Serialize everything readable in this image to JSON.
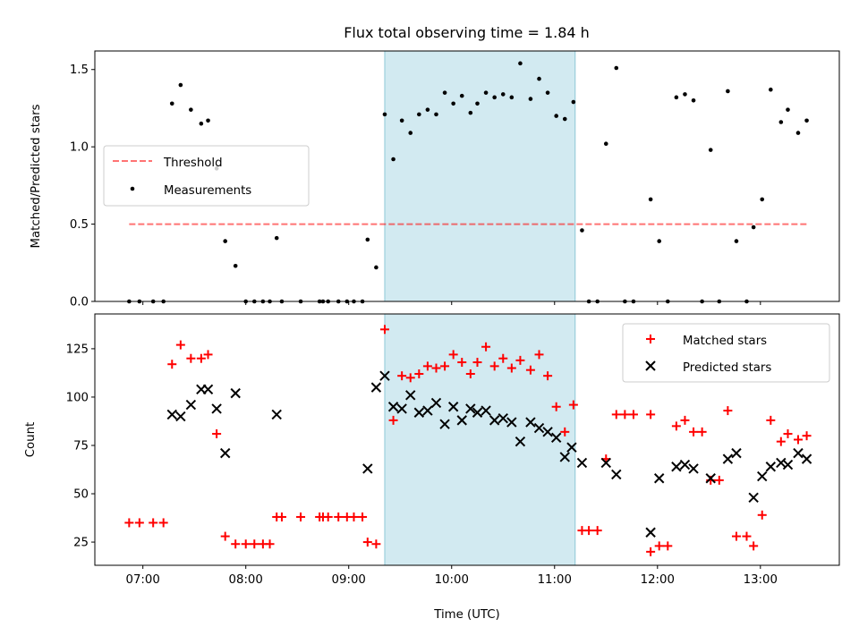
{
  "chart_data": [
    {
      "type": "scatter",
      "title": "Flux total observing time = 1.84 h",
      "xlabel": "",
      "ylabel": "Matched/Predicted stars",
      "xlim": [
        "06:32",
        "13:46"
      ],
      "ylim": [
        0,
        1.62
      ],
      "yticks": [
        "0.0",
        "0.5",
        "1.0",
        "1.5"
      ],
      "highlight_span": {
        "start": "09:21",
        "end": "11:12",
        "color": "#add8e6"
      },
      "threshold": {
        "name": "Threshold",
        "value": 0.5,
        "x": [
          "06:52",
          "13:28"
        ],
        "color": "#ff0000",
        "opacity": 0.55
      },
      "legend": {
        "placement": "center-left",
        "entries": [
          "Threshold",
          "Measurements"
        ]
      },
      "series": [
        {
          "name": "Measurements",
          "color": "#000000",
          "points": [
            [
              "06:52",
              0
            ],
            [
              "06:58",
              0
            ],
            [
              "07:06",
              0
            ],
            [
              "07:12",
              0
            ],
            [
              "07:17",
              1.28
            ],
            [
              "07:22",
              1.4
            ],
            [
              "07:28",
              1.24
            ],
            [
              "07:34",
              1.15
            ],
            [
              "07:38",
              1.17
            ],
            [
              "07:43",
              0.86
            ],
            [
              "07:48",
              0.39
            ],
            [
              "07:54",
              0.23
            ],
            [
              "08:00",
              0
            ],
            [
              "08:05",
              0
            ],
            [
              "08:10",
              0
            ],
            [
              "08:14",
              0
            ],
            [
              "08:18",
              0.41
            ],
            [
              "08:21",
              0
            ],
            [
              "08:32",
              0
            ],
            [
              "08:43",
              0
            ],
            [
              "08:45",
              0
            ],
            [
              "08:48",
              0
            ],
            [
              "08:54",
              0
            ],
            [
              "08:59",
              0
            ],
            [
              "09:03",
              0
            ],
            [
              "09:08",
              0
            ],
            [
              "09:11",
              0.4
            ],
            [
              "09:16",
              0.22
            ],
            [
              "09:21",
              1.21
            ],
            [
              "09:26",
              0.92
            ],
            [
              "09:31",
              1.17
            ],
            [
              "09:36",
              1.09
            ],
            [
              "09:41",
              1.21
            ],
            [
              "09:46",
              1.24
            ],
            [
              "09:51",
              1.21
            ],
            [
              "09:56",
              1.35
            ],
            [
              "10:01",
              1.28
            ],
            [
              "10:06",
              1.33
            ],
            [
              "10:11",
              1.22
            ],
            [
              "10:15",
              1.28
            ],
            [
              "10:20",
              1.35
            ],
            [
              "10:25",
              1.32
            ],
            [
              "10:30",
              1.34
            ],
            [
              "10:35",
              1.32
            ],
            [
              "10:40",
              1.54
            ],
            [
              "10:46",
              1.31
            ],
            [
              "10:51",
              1.44
            ],
            [
              "10:56",
              1.35
            ],
            [
              "11:01",
              1.2
            ],
            [
              "11:06",
              1.18
            ],
            [
              "11:11",
              1.29
            ],
            [
              "11:16",
              0.46
            ],
            [
              "11:20",
              0
            ],
            [
              "11:25",
              0
            ],
            [
              "11:30",
              1.02
            ],
            [
              "11:36",
              1.51
            ],
            [
              "11:41",
              0
            ],
            [
              "11:46",
              0
            ],
            [
              "11:56",
              0.66
            ],
            [
              "12:01",
              0.39
            ],
            [
              "12:06",
              0
            ],
            [
              "12:11",
              1.32
            ],
            [
              "12:16",
              1.34
            ],
            [
              "12:21",
              1.3
            ],
            [
              "12:26",
              0
            ],
            [
              "12:31",
              0.98
            ],
            [
              "12:36",
              0
            ],
            [
              "12:41",
              1.36
            ],
            [
              "12:46",
              0.39
            ],
            [
              "12:52",
              0
            ],
            [
              "12:56",
              0.48
            ],
            [
              "13:01",
              0.66
            ],
            [
              "13:06",
              1.37
            ],
            [
              "13:12",
              1.16
            ],
            [
              "13:16",
              1.24
            ],
            [
              "13:22",
              1.09
            ],
            [
              "13:27",
              1.17
            ]
          ]
        }
      ]
    },
    {
      "type": "scatter",
      "title": "",
      "xlabel": "Time (UTC)",
      "ylabel": "Count",
      "xlim": [
        "06:32",
        "13:46"
      ],
      "ylim": [
        13,
        143
      ],
      "yticks": [
        "25",
        "50",
        "75",
        "100",
        "125"
      ],
      "xticks": [
        "07:00",
        "08:00",
        "09:00",
        "10:00",
        "11:00",
        "12:00",
        "13:00"
      ],
      "highlight_span": {
        "start": "09:21",
        "end": "11:12",
        "color": "#add8e6"
      },
      "legend": {
        "placement": "top-right",
        "entries": [
          "Matched stars",
          "Predicted stars"
        ]
      },
      "series": [
        {
          "name": "Matched stars",
          "marker": "plus",
          "color": "#ff0000",
          "points": [
            [
              "06:52",
              35
            ],
            [
              "06:58",
              35
            ],
            [
              "07:06",
              35
            ],
            [
              "07:12",
              35
            ],
            [
              "07:17",
              117
            ],
            [
              "07:22",
              127
            ],
            [
              "07:28",
              120
            ],
            [
              "07:34",
              120
            ],
            [
              "07:38",
              122
            ],
            [
              "07:43",
              81
            ],
            [
              "07:48",
              28
            ],
            [
              "07:54",
              24
            ],
            [
              "08:00",
              24
            ],
            [
              "08:05",
              24
            ],
            [
              "08:10",
              24
            ],
            [
              "08:14",
              24
            ],
            [
              "08:18",
              38
            ],
            [
              "08:21",
              38
            ],
            [
              "08:32",
              38
            ],
            [
              "08:43",
              38
            ],
            [
              "08:45",
              38
            ],
            [
              "08:48",
              38
            ],
            [
              "08:54",
              38
            ],
            [
              "08:59",
              38
            ],
            [
              "09:03",
              38
            ],
            [
              "09:08",
              38
            ],
            [
              "09:11",
              25
            ],
            [
              "09:16",
              24
            ],
            [
              "09:21",
              135
            ],
            [
              "09:26",
              88
            ],
            [
              "09:31",
              111
            ],
            [
              "09:36",
              110
            ],
            [
              "09:41",
              112
            ],
            [
              "09:46",
              116
            ],
            [
              "09:51",
              115
            ],
            [
              "09:56",
              116
            ],
            [
              "10:01",
              122
            ],
            [
              "10:06",
              118
            ],
            [
              "10:11",
              112
            ],
            [
              "10:15",
              118
            ],
            [
              "10:20",
              126
            ],
            [
              "10:25",
              116
            ],
            [
              "10:30",
              120
            ],
            [
              "10:35",
              115
            ],
            [
              "10:40",
              119
            ],
            [
              "10:46",
              114
            ],
            [
              "10:51",
              122
            ],
            [
              "10:56",
              111
            ],
            [
              "11:01",
              95
            ],
            [
              "11:06",
              82
            ],
            [
              "11:11",
              96
            ],
            [
              "11:16",
              31
            ],
            [
              "11:20",
              31
            ],
            [
              "11:25",
              31
            ],
            [
              "11:30",
              68
            ],
            [
              "11:36",
              91
            ],
            [
              "11:41",
              91
            ],
            [
              "11:46",
              91
            ],
            [
              "11:56",
              91
            ],
            [
              "11:56",
              20
            ],
            [
              "12:01",
              23
            ],
            [
              "12:06",
              23
            ],
            [
              "12:11",
              85
            ],
            [
              "12:16",
              88
            ],
            [
              "12:21",
              82
            ],
            [
              "12:26",
              82
            ],
            [
              "12:31",
              57
            ],
            [
              "12:36",
              57
            ],
            [
              "12:41",
              93
            ],
            [
              "12:46",
              28
            ],
            [
              "12:52",
              28
            ],
            [
              "12:56",
              23
            ],
            [
              "13:01",
              39
            ],
            [
              "13:06",
              88
            ],
            [
              "13:12",
              77
            ],
            [
              "13:16",
              81
            ],
            [
              "13:22",
              78
            ],
            [
              "13:27",
              80
            ]
          ]
        },
        {
          "name": "Predicted stars",
          "marker": "x",
          "color": "#000000",
          "points": [
            [
              "07:17",
              91
            ],
            [
              "07:22",
              90
            ],
            [
              "07:28",
              96
            ],
            [
              "07:34",
              104
            ],
            [
              "07:38",
              104
            ],
            [
              "07:43",
              94
            ],
            [
              "07:48",
              71
            ],
            [
              "07:54",
              102
            ],
            [
              "08:18",
              91
            ],
            [
              "09:11",
              63
            ],
            [
              "09:16",
              105
            ],
            [
              "09:21",
              111
            ],
            [
              "09:26",
              95
            ],
            [
              "09:31",
              94
            ],
            [
              "09:36",
              101
            ],
            [
              "09:41",
              92
            ],
            [
              "09:46",
              93
            ],
            [
              "09:51",
              97
            ],
            [
              "09:56",
              86
            ],
            [
              "10:01",
              95
            ],
            [
              "10:06",
              88
            ],
            [
              "10:11",
              94
            ],
            [
              "10:15",
              92
            ],
            [
              "10:20",
              93
            ],
            [
              "10:25",
              88
            ],
            [
              "10:30",
              89
            ],
            [
              "10:35",
              87
            ],
            [
              "10:40",
              77
            ],
            [
              "10:46",
              87
            ],
            [
              "10:51",
              84
            ],
            [
              "10:56",
              82
            ],
            [
              "11:01",
              79
            ],
            [
              "11:06",
              69
            ],
            [
              "11:10",
              74
            ],
            [
              "11:16",
              66
            ],
            [
              "11:30",
              66
            ],
            [
              "11:36",
              60
            ],
            [
              "11:56",
              30
            ],
            [
              "12:01",
              58
            ],
            [
              "12:11",
              64
            ],
            [
              "12:16",
              65
            ],
            [
              "12:21",
              63
            ],
            [
              "12:31",
              58
            ],
            [
              "12:41",
              68
            ],
            [
              "12:46",
              71
            ],
            [
              "12:56",
              48
            ],
            [
              "13:01",
              59
            ],
            [
              "13:06",
              64
            ],
            [
              "13:12",
              66
            ],
            [
              "13:16",
              65
            ],
            [
              "13:22",
              71
            ],
            [
              "13:27",
              68
            ]
          ]
        }
      ]
    }
  ]
}
